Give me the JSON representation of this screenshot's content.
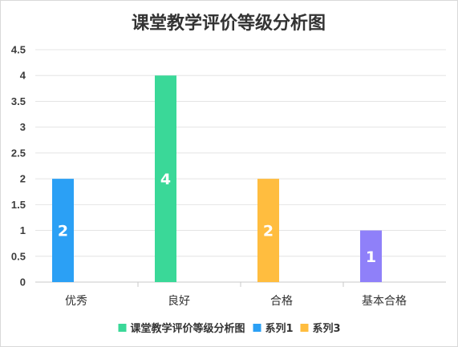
{
  "chart_data": {
    "type": "bar",
    "title": "课堂教学评价等级分析图",
    "categories": [
      "优秀",
      "良好",
      "合格",
      "基本合格"
    ],
    "ylim": [
      0,
      4.5
    ],
    "yticks": [
      "0",
      "0.5",
      "1",
      "1.5",
      "2",
      "2.5",
      "3",
      "3.5",
      "4",
      "4.5"
    ],
    "grid": true,
    "legend_position": "bottom",
    "legend": [
      {
        "name": "课堂教学评价等级分析图",
        "color": "#3ad898"
      },
      {
        "name": "系列1",
        "color": "#2ba0f5"
      },
      {
        "name": "系列3",
        "color": "#ffbd3f"
      }
    ],
    "bars": [
      {
        "category": "优秀",
        "value": 2,
        "label": "2",
        "color": "#2ba0f5"
      },
      {
        "category": "良好",
        "value": 4,
        "label": "4",
        "color": "#3ad898"
      },
      {
        "category": "合格",
        "value": 2,
        "label": "2",
        "color": "#ffbd3f"
      },
      {
        "category": "基本合格",
        "value": 1,
        "label": "1",
        "color": "#8f80f9"
      }
    ]
  }
}
